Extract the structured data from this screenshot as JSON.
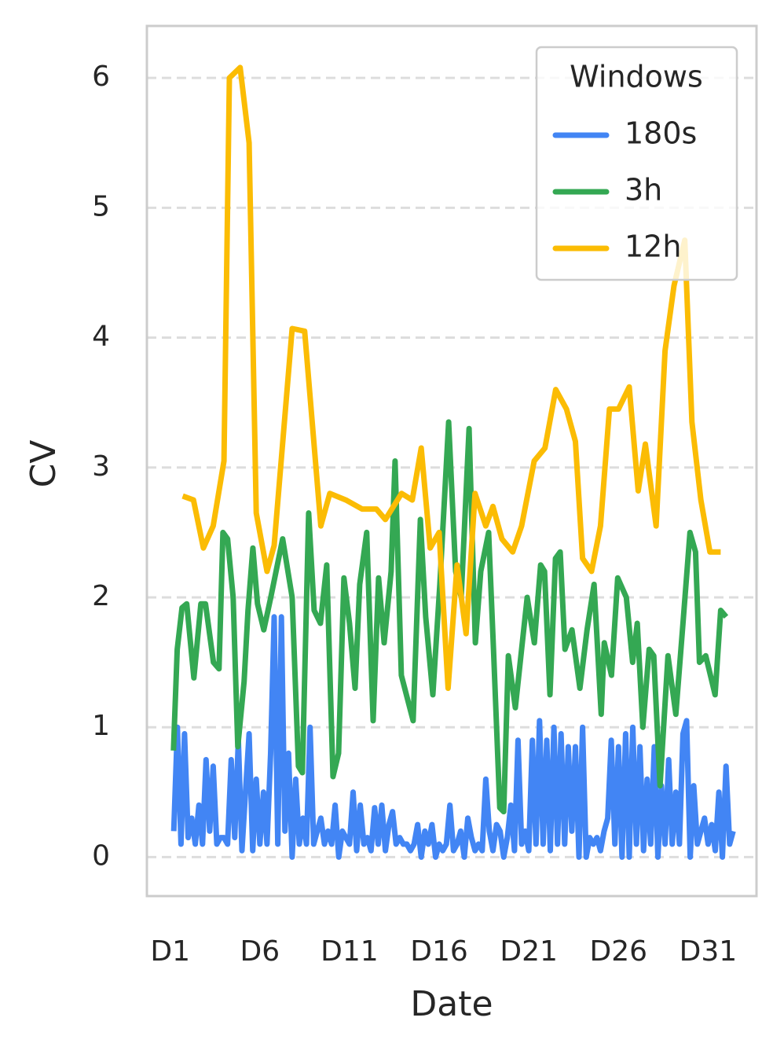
{
  "chart_data": {
    "type": "line",
    "xlabel": "Date",
    "ylabel": "CV",
    "legend_title": "Windows",
    "legend": "upper right",
    "grid": true,
    "xlim": [
      -0.3,
      33.7
    ],
    "ylim": [
      -0.3,
      6.4
    ],
    "xticks": [
      {
        "value": 1,
        "label": "D1"
      },
      {
        "value": 6,
        "label": "D6"
      },
      {
        "value": 11,
        "label": "D11"
      },
      {
        "value": 16,
        "label": "D16"
      },
      {
        "value": 21,
        "label": "D21"
      },
      {
        "value": 26,
        "label": "D26"
      },
      {
        "value": 31,
        "label": "D31"
      }
    ],
    "yticks": [
      0,
      1,
      2,
      3,
      4,
      5,
      6
    ],
    "series": [
      {
        "name": "180s",
        "color": "#4285f4",
        "x": [
          1.2,
          1.4,
          1.6,
          1.8,
          2.0,
          2.2,
          2.4,
          2.6,
          2.8,
          3.0,
          3.2,
          3.4,
          3.6,
          3.8,
          4.0,
          4.2,
          4.4,
          4.6,
          4.8,
          5.0,
          5.2,
          5.4,
          5.6,
          5.8,
          6.0,
          6.2,
          6.4,
          6.6,
          6.8,
          7.0,
          7.2,
          7.4,
          7.6,
          7.8,
          8.0,
          8.2,
          8.4,
          8.6,
          8.8,
          9.0,
          9.2,
          9.4,
          9.6,
          9.8,
          10.0,
          10.2,
          10.4,
          10.6,
          10.8,
          11.0,
          11.2,
          11.4,
          11.6,
          11.8,
          12.0,
          12.2,
          12.4,
          12.6,
          12.8,
          13.0,
          13.2,
          13.4,
          13.6,
          13.8,
          14.0,
          14.2,
          14.4,
          14.6,
          14.8,
          15.0,
          15.2,
          15.4,
          15.6,
          15.8,
          16.0,
          16.2,
          16.4,
          16.6,
          16.8,
          17.0,
          17.2,
          17.4,
          17.6,
          17.8,
          18.0,
          18.2,
          18.4,
          18.6,
          18.8,
          19.0,
          19.2,
          19.4,
          19.6,
          19.8,
          20.0,
          20.2,
          20.4,
          20.6,
          20.8,
          21.0,
          21.2,
          21.4,
          21.6,
          21.8,
          22.0,
          22.2,
          22.4,
          22.6,
          22.8,
          23.0,
          23.2,
          23.4,
          23.6,
          23.8,
          24.0,
          24.2,
          24.4,
          24.6,
          24.8,
          25.0,
          25.2,
          25.4,
          25.6,
          25.8,
          26.0,
          26.2,
          26.4,
          26.6,
          26.8,
          27.0,
          27.2,
          27.4,
          27.6,
          27.8,
          28.0,
          28.2,
          28.4,
          28.6,
          28.8,
          29.0,
          29.2,
          29.4,
          29.6,
          29.8,
          30.0,
          30.2,
          30.4,
          30.6,
          30.8,
          31.0,
          31.2,
          31.4,
          31.6,
          31.8,
          32.0,
          32.2,
          32.4
        ],
        "values": [
          0.2,
          1.0,
          0.1,
          0.95,
          0.15,
          0.3,
          0.1,
          0.4,
          0.1,
          0.75,
          0.2,
          0.7,
          0.1,
          0.15,
          0.15,
          0.1,
          0.75,
          0.15,
          0.9,
          0.05,
          0.5,
          0.95,
          0.05,
          0.6,
          0.1,
          0.5,
          0.1,
          0.8,
          1.85,
          0.1,
          1.85,
          0.2,
          0.8,
          0.0,
          0.6,
          0.1,
          0.3,
          0.1,
          1.0,
          0.1,
          0.2,
          0.3,
          0.1,
          0.2,
          0.1,
          0.4,
          0.0,
          0.2,
          0.15,
          0.1,
          0.5,
          0.05,
          0.4,
          0.1,
          0.15,
          0.05,
          0.38,
          0.1,
          0.4,
          0.05,
          0.25,
          0.35,
          0.1,
          0.15,
          0.1,
          0.1,
          0.05,
          0.1,
          0.25,
          0.0,
          0.2,
          0.1,
          0.25,
          0.0,
          0.1,
          0.05,
          0.1,
          0.4,
          0.05,
          0.1,
          0.2,
          0.0,
          0.3,
          0.15,
          0.05,
          0.1,
          0.05,
          0.6,
          0.2,
          0.05,
          0.25,
          0.2,
          0.0,
          0.15,
          0.4,
          0.05,
          0.9,
          0.1,
          0.2,
          0.05,
          0.9,
          0.1,
          1.05,
          0.1,
          0.9,
          0.05,
          1.0,
          0.1,
          0.95,
          0.1,
          0.85,
          0.2,
          0.85,
          0.0,
          1.0,
          0.0,
          0.15,
          0.1,
          0.15,
          0.05,
          0.2,
          0.3,
          0.9,
          0.1,
          0.85,
          0.0,
          0.95,
          0.0,
          1.0,
          0.1,
          0.85,
          0.05,
          0.6,
          0.1,
          0.85,
          0.0,
          0.55,
          0.1,
          0.75,
          0.1,
          0.5,
          0.1,
          0.95,
          1.05,
          0.0,
          0.55,
          0.1,
          0.2,
          0.3,
          0.1,
          0.25,
          0.05,
          0.5,
          0.0,
          0.7,
          0.1,
          0.2
        ]
      },
      {
        "name": "3h",
        "color": "#34a853",
        "x": [
          1.18,
          1.39,
          1.66,
          1.92,
          2.32,
          2.71,
          2.97,
          3.41,
          3.72,
          3.94,
          4.2,
          4.51,
          4.77,
          5.12,
          5.34,
          5.61,
          5.87,
          6.22,
          6.61,
          7.27,
          7.8,
          8.15,
          8.37,
          8.72,
          9.03,
          9.38,
          9.73,
          10.08,
          10.39,
          10.69,
          11.0,
          11.31,
          11.57,
          11.96,
          12.32,
          12.62,
          12.93,
          13.32,
          13.54,
          13.89,
          14.55,
          14.95,
          15.25,
          15.65,
          16.04,
          16.53,
          16.92,
          17.23,
          17.67,
          18.02,
          18.32,
          18.76,
          19.03,
          19.38,
          19.6,
          19.86,
          20.25,
          20.56,
          20.91,
          21.31,
          21.66,
          21.88,
          22.18,
          22.49,
          22.75,
          23.02,
          23.41,
          23.85,
          24.25,
          24.64,
          25.04,
          25.21,
          25.61,
          25.96,
          26.44,
          26.79,
          27.05,
          27.36,
          27.71,
          27.97,
          28.32,
          28.76,
          29.2,
          29.6,
          29.99,
          30.3,
          30.52,
          30.87,
          31.39,
          31.7,
          32.01
        ],
        "values": [
          0.82,
          1.6,
          1.92,
          1.95,
          1.38,
          1.95,
          1.95,
          1.5,
          1.45,
          2.5,
          2.45,
          2.0,
          0.85,
          1.35,
          1.9,
          2.38,
          1.95,
          1.75,
          2.0,
          2.45,
          2.0,
          0.7,
          0.65,
          2.65,
          1.9,
          1.8,
          2.25,
          0.62,
          0.8,
          2.15,
          1.8,
          1.3,
          2.1,
          2.5,
          1.05,
          2.15,
          1.65,
          2.2,
          3.05,
          1.4,
          1.05,
          2.6,
          1.85,
          1.25,
          2.1,
          3.35,
          2.2,
          2.0,
          3.3,
          1.65,
          2.2,
          2.5,
          1.6,
          0.38,
          0.35,
          1.55,
          1.15,
          1.55,
          2.0,
          1.65,
          2.25,
          2.2,
          1.25,
          2.3,
          2.35,
          1.6,
          1.75,
          1.3,
          1.75,
          2.1,
          1.1,
          1.65,
          1.4,
          2.15,
          2.0,
          1.5,
          1.8,
          1.0,
          1.6,
          1.55,
          0.55,
          1.55,
          1.1,
          1.8,
          2.5,
          2.35,
          1.5,
          1.55,
          1.25,
          1.9,
          1.85
        ]
      },
      {
        "name": "12h",
        "color": "#fbbc04",
        "x": [
          1.7,
          2.3,
          2.85,
          3.4,
          4.0,
          4.3,
          4.9,
          5.4,
          5.8,
          6.4,
          6.8,
          7.8,
          8.5,
          9.4,
          9.9,
          10.8,
          11.7,
          12.5,
          13.0,
          13.9,
          14.5,
          15.0,
          15.5,
          16.0,
          16.5,
          17.0,
          17.5,
          18.0,
          18.6,
          19.0,
          19.5,
          20.1,
          20.6,
          21.3,
          21.9,
          22.5,
          23.1,
          23.6,
          24.0,
          24.5,
          25.0,
          25.5,
          26.0,
          26.6,
          27.1,
          27.5,
          28.1,
          28.6,
          29.1,
          29.7,
          30.1,
          30.6,
          31.1,
          31.7
        ],
        "values": [
          2.78,
          2.75,
          2.38,
          2.55,
          3.05,
          6.0,
          6.08,
          5.5,
          2.65,
          2.2,
          2.4,
          4.07,
          4.05,
          2.55,
          2.8,
          2.75,
          2.68,
          2.68,
          2.6,
          2.8,
          2.75,
          3.15,
          2.38,
          2.5,
          1.3,
          2.25,
          1.72,
          2.8,
          2.55,
          2.7,
          2.45,
          2.35,
          2.55,
          3.05,
          3.15,
          3.6,
          3.45,
          3.2,
          2.3,
          2.2,
          2.55,
          3.45,
          3.45,
          3.62,
          2.82,
          3.18,
          2.55,
          3.9,
          4.4,
          4.75,
          3.35,
          2.75,
          2.35,
          2.35
        ]
      }
    ]
  }
}
